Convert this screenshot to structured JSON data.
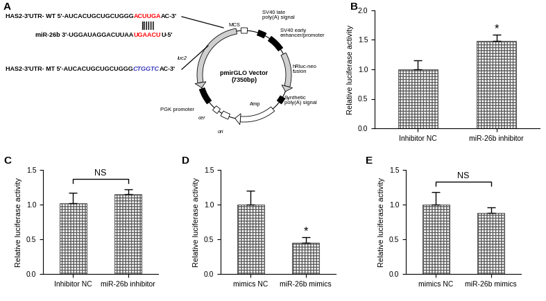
{
  "panel_a": {
    "panel": "A",
    "sequences": {
      "wild_type": [
        {
          "text": "HAS2-3'UTR- WT 5'-AUCACUGCUGCUGGG",
          "color": "#000000"
        },
        {
          "text": "ACUUGA",
          "color": "#ff0000"
        },
        {
          "text": "AC-3'",
          "color": "#000000"
        }
      ],
      "pairing": "||||||",
      "mirna": [
        {
          "text": "miR-26b 3'-UGGAUAGGACUUAA",
          "color": "#000000"
        },
        {
          "text": "UGAACU",
          "color": "#ff0000"
        },
        {
          "text": "U-5'",
          "color": "#000000"
        }
      ],
      "mutant": [
        {
          "text": "HAS2-3'UTR- MT 5'-AUCACUGCUGCUGGG",
          "color": "#000000"
        },
        {
          "text": "CTGGTC",
          "color": "#3333bb"
        },
        {
          "text": "AC-3'",
          "color": "#000000"
        }
      ]
    },
    "vector": {
      "name": "pmirGLO Vector",
      "size": "(7350bp)",
      "features": [
        "luc2",
        "MCS",
        "SV40 late\npoly(A) signal",
        "SV40 early\nenhancer/promoter",
        "hRluc-neo\nfusion",
        "Synthetic\npoly(A) signal",
        "Amp",
        "ori",
        "cer",
        "PGK promoter"
      ]
    }
  },
  "chart_data": [
    {
      "panel": "B",
      "type": "bar",
      "categories": [
        "Inhibitor NC",
        "miR-26b inhibitor"
      ],
      "values": [
        1.0,
        1.48
      ],
      "errors": [
        0.15,
        0.11
      ],
      "color": "#606060",
      "ylabel": "Relative luciferase activity",
      "ylim": [
        0,
        2.0
      ],
      "yticks": [
        {
          "value": 0,
          "label": "0.0"
        },
        {
          "value": 0.5,
          "label": "0.5"
        },
        {
          "value": 1.0,
          "label": "1.0"
        },
        {
          "value": 1.5,
          "label": "1.5"
        },
        {
          "value": 2.0,
          "label": "2.0"
        }
      ],
      "annotations": [
        {
          "text": "*",
          "categories": [
            "miR-26b inhibitor"
          ]
        }
      ]
    },
    {
      "panel": "C",
      "type": "bar",
      "categories": [
        "Inhibitor NC",
        "miR-26b inhibitor"
      ],
      "values": [
        1.02,
        1.15
      ],
      "errors": [
        0.15,
        0.07
      ],
      "color": "#606060",
      "ylabel": "Relative luciferase activity",
      "ylim": [
        0,
        1.5
      ],
      "yticks": [
        {
          "value": 0,
          "label": "0.0"
        },
        {
          "value": 0.5,
          "label": "0.5"
        },
        {
          "value": 1.0,
          "label": "1.0"
        },
        {
          "value": 1.5,
          "label": "1.5"
        }
      ],
      "annotations": [
        {
          "text": "NS",
          "categories": [
            "Inhibitor NC",
            "miR-26b inhibitor"
          ]
        }
      ]
    },
    {
      "panel": "D",
      "type": "bar",
      "categories": [
        "mimics NC",
        "miR-26b mimics"
      ],
      "values": [
        1.0,
        0.45
      ],
      "errors": [
        0.2,
        0.08
      ],
      "color": "#606060",
      "ylabel": "Relative luciferase activity",
      "ylim": [
        0,
        1.5
      ],
      "yticks": [
        {
          "value": 0,
          "label": "0.0"
        },
        {
          "value": 0.5,
          "label": "0.5"
        },
        {
          "value": 1.0,
          "label": "1.0"
        },
        {
          "value": 1.5,
          "label": "1.5"
        }
      ],
      "annotations": [
        {
          "text": "*",
          "categories": [
            "miR-26b mimics"
          ]
        }
      ]
    },
    {
      "panel": "E",
      "type": "bar",
      "categories": [
        "mimics NC",
        "miR-26b mimics"
      ],
      "values": [
        1.0,
        0.88
      ],
      "errors": [
        0.18,
        0.08
      ],
      "color": "#606060",
      "ylabel": "Relative luciferase activity",
      "ylim": [
        0,
        1.5
      ],
      "yticks": [
        {
          "value": 0,
          "label": "0.0"
        },
        {
          "value": 0.5,
          "label": "0.5"
        },
        {
          "value": 1.0,
          "label": "1.0"
        },
        {
          "value": 1.5,
          "label": "1.5"
        }
      ],
      "annotations": [
        {
          "text": "NS",
          "categories": [
            "mimics NC",
            "miR-26b mimics"
          ]
        }
      ]
    }
  ]
}
